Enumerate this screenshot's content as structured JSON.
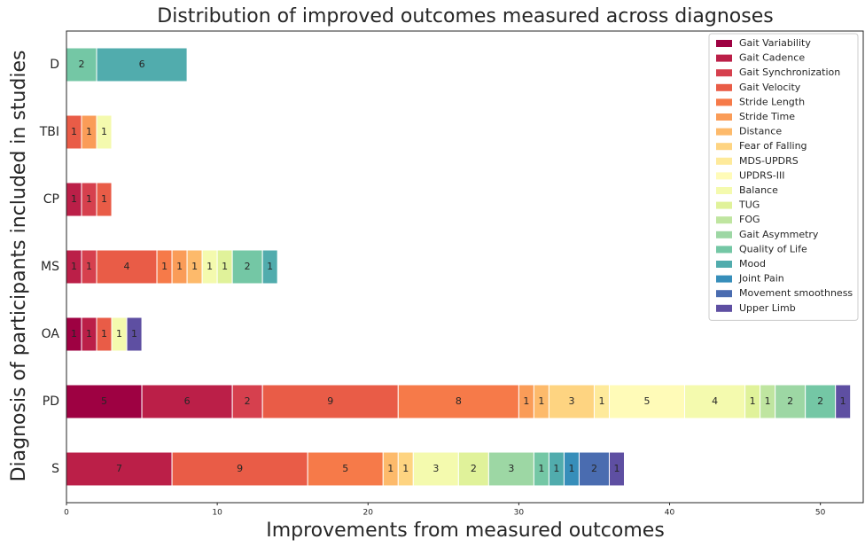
{
  "chart_data": {
    "type": "stacked_barh",
    "title": "Distribution of improved outcomes measured across diagnoses",
    "xlabel": "Improvements from measured outcomes",
    "ylabel": "Diagnosis of participants included in studies",
    "categories": [
      "D",
      "TBI",
      "CP",
      "MS",
      "OA",
      "PD",
      "S"
    ],
    "xlim": [
      0,
      52.9
    ],
    "xticks": [
      0,
      10,
      20,
      30,
      40,
      50
    ],
    "legend": "upper right",
    "grid": false,
    "series": [
      {
        "name": "Gait Variability",
        "color": "#9e0142",
        "values": [
          0,
          0,
          0,
          0,
          1,
          5,
          0
        ]
      },
      {
        "name": "Gait Cadence",
        "color": "#bb1f48",
        "values": [
          0,
          0,
          1,
          1,
          1,
          6,
          7
        ]
      },
      {
        "name": "Gait Synchronization",
        "color": "#d6404e",
        "values": [
          0,
          0,
          1,
          1,
          0,
          2,
          0
        ]
      },
      {
        "name": "Gait Velocity",
        "color": "#e95c47",
        "values": [
          0,
          1,
          1,
          4,
          1,
          9,
          9
        ]
      },
      {
        "name": "Stride Length",
        "color": "#f67a49",
        "values": [
          0,
          0,
          0,
          1,
          0,
          8,
          5
        ]
      },
      {
        "name": "Stride Time",
        "color": "#fa9c58",
        "values": [
          0,
          1,
          0,
          1,
          0,
          1,
          0
        ]
      },
      {
        "name": "Distance",
        "color": "#fdba6b",
        "values": [
          0,
          0,
          0,
          1,
          0,
          1,
          1
        ]
      },
      {
        "name": "Fear of Falling",
        "color": "#fed481",
        "values": [
          0,
          0,
          0,
          0,
          0,
          3,
          1
        ]
      },
      {
        "name": "MDS-UPDRS",
        "color": "#feea9b",
        "values": [
          0,
          0,
          0,
          0,
          0,
          1,
          0
        ]
      },
      {
        "name": "UPDRS-III",
        "color": "#fffbb8",
        "values": [
          0,
          0,
          0,
          0,
          0,
          5,
          0
        ]
      },
      {
        "name": "Balance",
        "color": "#f4faae",
        "values": [
          0,
          1,
          0,
          1,
          1,
          4,
          3
        ]
      },
      {
        "name": "TUG",
        "color": "#e0f29a",
        "values": [
          0,
          0,
          0,
          1,
          0,
          1,
          2
        ]
      },
      {
        "name": "FOG",
        "color": "#bfe5a0",
        "values": [
          0,
          0,
          0,
          0,
          0,
          1,
          0
        ]
      },
      {
        "name": "Gait Asymmetry",
        "color": "#9dd7a4",
        "values": [
          0,
          0,
          0,
          0,
          0,
          2,
          3
        ]
      },
      {
        "name": "Quality of Life",
        "color": "#74c7a5",
        "values": [
          2,
          0,
          0,
          2,
          0,
          2,
          1
        ]
      },
      {
        "name": "Mood",
        "color": "#51acad",
        "values": [
          6,
          0,
          0,
          1,
          0,
          0,
          1
        ]
      },
      {
        "name": "Joint Pain",
        "color": "#378eba",
        "values": [
          0,
          0,
          0,
          0,
          0,
          0,
          1
        ]
      },
      {
        "name": "Movement smoothness",
        "color": "#4a6cb0",
        "values": [
          0,
          0,
          0,
          0,
          0,
          0,
          2
        ]
      },
      {
        "name": "Upper Limb",
        "color": "#5e4fa2",
        "values": [
          0,
          0,
          0,
          0,
          1,
          1,
          1
        ]
      }
    ]
  }
}
